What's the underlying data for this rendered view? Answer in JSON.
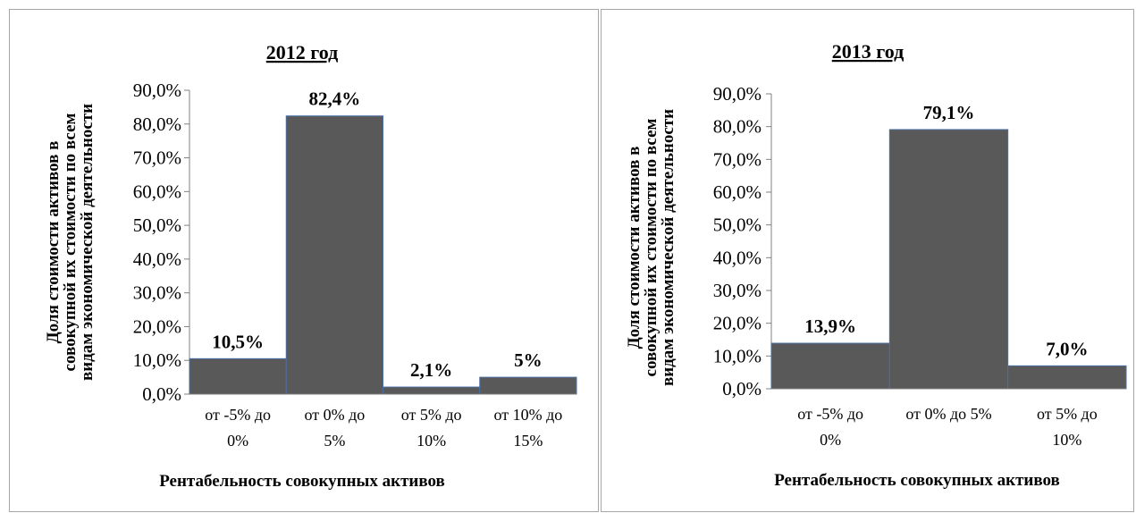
{
  "chart_data": [
    {
      "type": "bar",
      "title": "2012 год",
      "xlabel": "Рентабельность совокупных активов",
      "ylabel": [
        "Доля стоимости активов в",
        "совокупной их стоимости по всем",
        "видам экономической деятельности"
      ],
      "categories": [
        [
          "от -5% до",
          "0%"
        ],
        [
          "от 0% до",
          "5%"
        ],
        [
          "от 5% до",
          "10%"
        ],
        [
          "от 10% до",
          "15%"
        ]
      ],
      "values": [
        10.5,
        82.4,
        2.1,
        5
      ],
      "data_labels": [
        "10,5%",
        "82,4%",
        "2,1%",
        "5%"
      ],
      "ylim": [
        0,
        90
      ],
      "yticks": [
        "0,0%",
        "10,0%",
        "20,0%",
        "30,0%",
        "40,0%",
        "50,0%",
        "60,0%",
        "70,0%",
        "80,0%",
        "90,0%"
      ],
      "grid": false,
      "bar_color": "#595959"
    },
    {
      "type": "bar",
      "title": "2013 год",
      "xlabel": "Рентабельность совокупных активов",
      "ylabel": [
        "Доля стоимости активов в",
        "совокупной их стоимости по всем",
        "видам экономической деятельности"
      ],
      "categories": [
        [
          "от -5% до",
          "0%"
        ],
        [
          "от 0% до 5%"
        ],
        [
          "от 5% до",
          "10%"
        ]
      ],
      "values": [
        13.9,
        79.1,
        7.0
      ],
      "data_labels": [
        "13,9%",
        "79,1%",
        "7,0%"
      ],
      "ylim": [
        0,
        90
      ],
      "yticks": [
        "0,0%",
        "10,0%",
        "20,0%",
        "30,0%",
        "40,0%",
        "50,0%",
        "60,0%",
        "70,0%",
        "80,0%",
        "90,0%"
      ],
      "grid": false,
      "bar_color": "#595959"
    }
  ]
}
